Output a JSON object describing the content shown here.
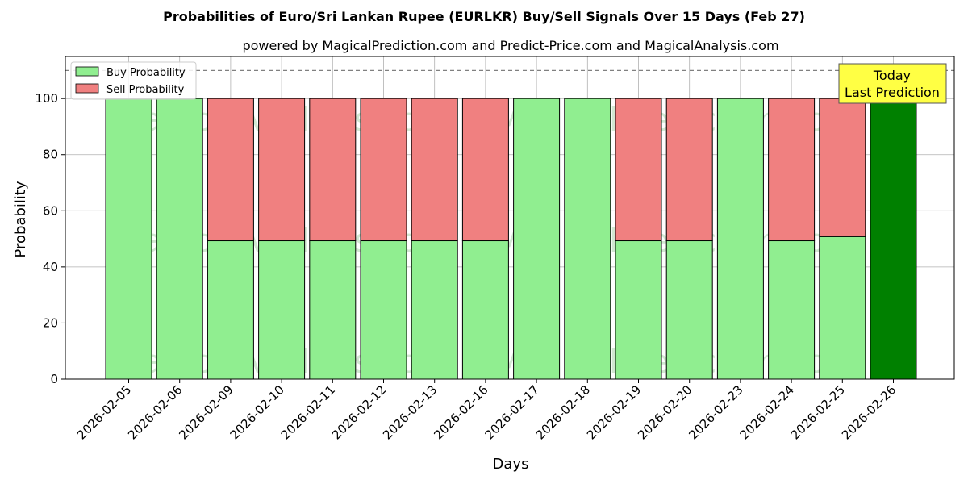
{
  "colors": {
    "buy": "#90ee90",
    "sell": "#f08080",
    "today": "#008000",
    "annotation_bg": "#ffff44",
    "grid": "#b0b0b0",
    "ref_line": "#808080"
  },
  "watermark_texts": [
    "MagicalAnalysis.com",
    "MagicalPrediction.com"
  ],
  "chart_data": {
    "type": "bar",
    "stacked": true,
    "title": "Probabilities of Euro/Sri Lankan Rupee (EURLKR) Buy/Sell Signals Over 15 Days (Feb 27)",
    "subtitle": "powered by MagicalPrediction.com and Predict-Price.com and MagicalAnalysis.com",
    "xlabel": "Days",
    "ylabel": "Probability",
    "ylim": [
      0,
      115
    ],
    "yticks": [
      0,
      20,
      40,
      60,
      80,
      100
    ],
    "reference_line": 110,
    "grid": true,
    "legend_position": "top-left",
    "categories": [
      "2026-02-05",
      "2026-02-06",
      "2026-02-09",
      "2026-02-10",
      "2026-02-11",
      "2026-02-12",
      "2026-02-13",
      "2026-02-16",
      "2026-02-17",
      "2026-02-18",
      "2026-02-19",
      "2026-02-20",
      "2026-02-23",
      "2026-02-24",
      "2026-02-25",
      "2026-02-26"
    ],
    "series": [
      {
        "name": "Buy Probability",
        "values": [
          100,
          100,
          49.3,
          49.3,
          49.3,
          49.3,
          49.3,
          49.3,
          100,
          100,
          49.3,
          49.3,
          100,
          49.3,
          50.8,
          100
        ]
      },
      {
        "name": "Sell Probability",
        "values": [
          0,
          0,
          50.7,
          50.7,
          50.7,
          50.7,
          50.7,
          50.7,
          0,
          0,
          50.7,
          50.7,
          0,
          50.7,
          49.2,
          0
        ]
      }
    ],
    "highlight_category": "2026-02-26",
    "annotation": {
      "line1": "Today",
      "line2": "Last Prediction"
    }
  }
}
